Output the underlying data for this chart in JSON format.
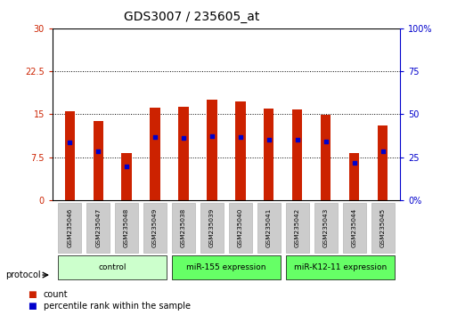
{
  "title": "GDS3007 / 235605_at",
  "samples": [
    "GSM235046",
    "GSM235047",
    "GSM235048",
    "GSM235049",
    "GSM235038",
    "GSM235039",
    "GSM235040",
    "GSM235041",
    "GSM235042",
    "GSM235043",
    "GSM235044",
    "GSM235045"
  ],
  "bar_heights": [
    15.5,
    13.8,
    8.2,
    16.2,
    16.3,
    17.5,
    17.2,
    16.0,
    15.9,
    14.9,
    8.2,
    13.0
  ],
  "blue_positions": [
    10.0,
    8.5,
    5.8,
    11.0,
    10.8,
    11.2,
    11.0,
    10.5,
    10.5,
    10.2,
    6.5,
    8.5
  ],
  "bar_color": "#cc2200",
  "blue_color": "#0000cc",
  "ylim_left": [
    0,
    30
  ],
  "ylim_right": [
    0,
    100
  ],
  "yticks_left": [
    0,
    7.5,
    15,
    22.5,
    30
  ],
  "yticks_right": [
    0,
    25,
    50,
    75,
    100
  ],
  "ytick_labels_left": [
    "0",
    "7.5",
    "15",
    "22.5",
    "30"
  ],
  "ytick_labels_right": [
    "0%",
    "25",
    "50",
    "75",
    "100%"
  ],
  "groups": [
    {
      "label": "control",
      "start": 0,
      "end": 4,
      "color": "#ccffcc"
    },
    {
      "label": "miR-155 expression",
      "start": 4,
      "end": 8,
      "color": "#66ff66"
    },
    {
      "label": "miR-K12-11 expression",
      "start": 8,
      "end": 12,
      "color": "#66ff66"
    }
  ],
  "protocol_label": "protocol",
  "legend_count_label": "count",
  "legend_pct_label": "percentile rank within the sample",
  "bar_width": 0.35,
  "bg_color": "#ffffff",
  "grid_color": "#000000",
  "left_tick_color": "#cc2200",
  "right_tick_color": "#0000cc",
  "title_fontsize": 10,
  "tick_fontsize": 7,
  "label_fontsize": 7
}
